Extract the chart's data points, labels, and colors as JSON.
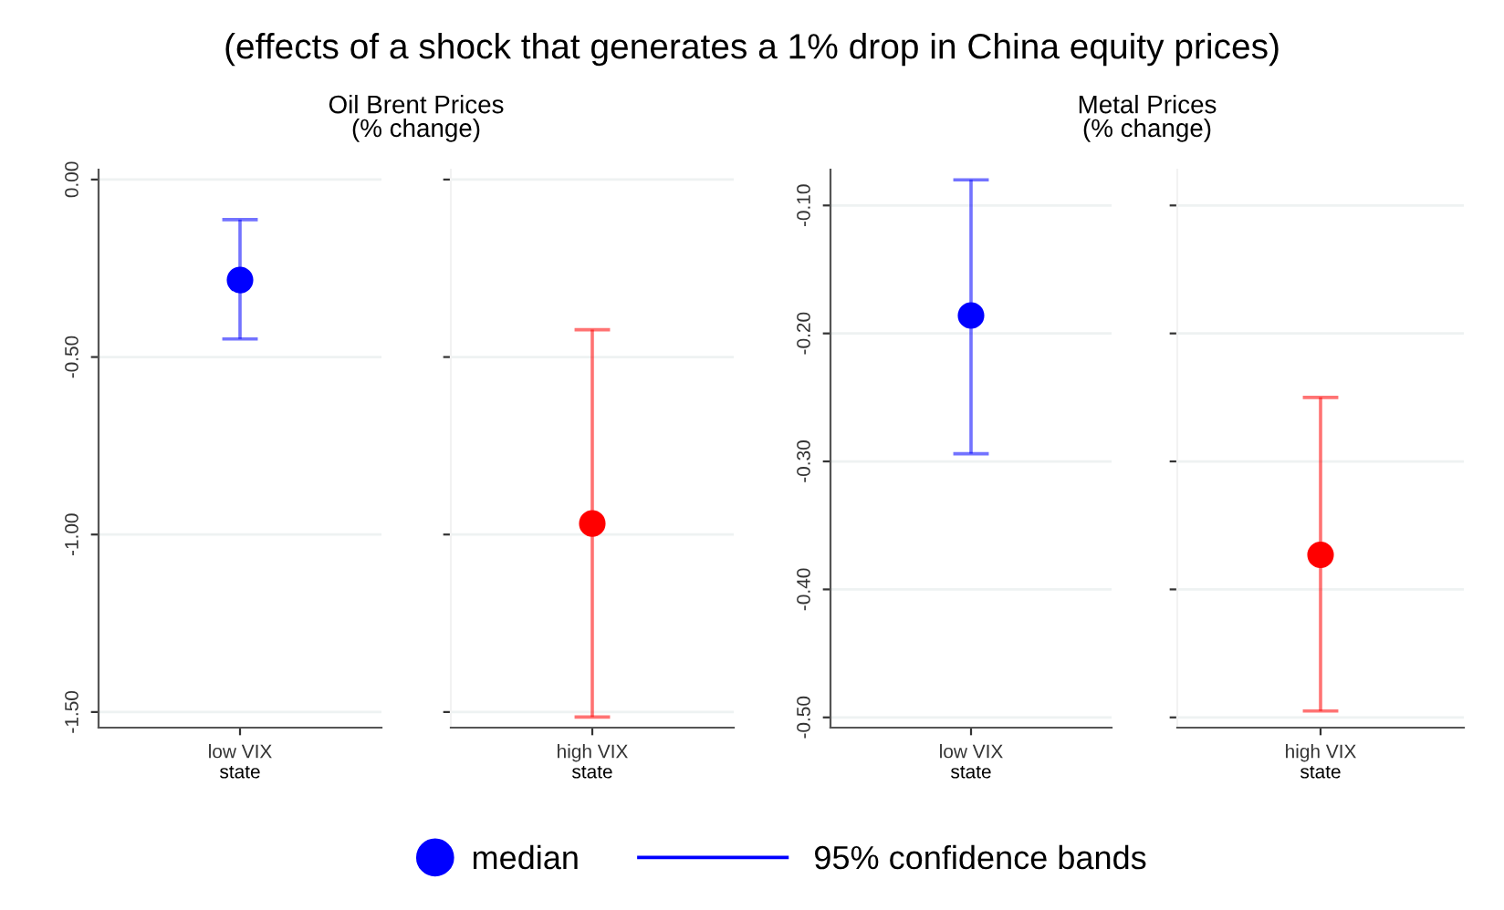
{
  "chart_data": [
    {
      "type": "scatter",
      "title": "(effects of a shock that generates a 1% drop in China equity prices)",
      "subtitle": "Oil Brent Prices\n(% change)",
      "categories": [
        "low VIX"
      ],
      "xlabel": "state",
      "series": [
        {
          "name": "median",
          "color": "#0000ff",
          "values": [
            -0.283
          ],
          "errors": [
            [
              -0.449,
              -0.113
            ]
          ]
        }
      ],
      "ylim": [
        -1.544,
        0.028
      ],
      "yticks": [
        {
          "value": 0,
          "label": "0.00"
        },
        {
          "value": -0.5,
          "label": "-0.50"
        },
        {
          "value": -1,
          "label": "-1.00"
        },
        {
          "value": -1.5,
          "label": "-1.50"
        }
      ],
      "grid": "y",
      "marker": "circle",
      "legend": "bottom",
      "annotations": [
        "95% confidence bands"
      ]
    },
    {
      "type": "scatter",
      "categories": [
        "high VIX"
      ],
      "xlabel": "state",
      "series": [
        {
          "color": "#ff0000",
          "values": [
            -0.969
          ],
          "errors": [
            [
              -1.514,
              -0.423
            ]
          ]
        }
      ],
      "ylim": [
        -1.544,
        0.028
      ],
      "yticks": [
        {
          "value": 0,
          "label": null
        },
        {
          "value": -0.5,
          "label": null
        },
        {
          "value": -1,
          "label": null
        },
        {
          "value": -1.5,
          "label": null
        }
      ],
      "grid": "y",
      "marker": "circle",
      "tick_labels": "x"
    },
    {
      "type": "scatter",
      "subtitle": "Metal Prices\n(% change)",
      "categories": [
        "low VIX"
      ],
      "xlabel": "state",
      "series": [
        {
          "color": "#0000ff",
          "values": [
            -0.186
          ],
          "errors": [
            [
              -0.294,
              -0.08
            ]
          ]
        }
      ],
      "ylim": [
        -0.508,
        -0.072
      ],
      "yticks": [
        {
          "value": -0.1,
          "label": "-0.10"
        },
        {
          "value": -0.2,
          "label": "-0.20"
        },
        {
          "value": -0.3,
          "label": "-0.30"
        },
        {
          "value": -0.4,
          "label": "-0.40"
        },
        {
          "value": -0.5,
          "label": "-0.50"
        }
      ],
      "grid": "y",
      "marker": "circle"
    },
    {
      "type": "scatter",
      "categories": [
        "high VIX"
      ],
      "xlabel": "state",
      "series": [
        {
          "color": "#ff0000",
          "values": [
            -0.373
          ],
          "errors": [
            [
              -0.495,
              -0.25
            ]
          ]
        }
      ],
      "ylim": [
        -0.508,
        -0.072
      ],
      "yticks": [
        {
          "value": -0.1,
          "label": null
        },
        {
          "value": -0.2,
          "label": null
        },
        {
          "value": -0.3,
          "label": null
        },
        {
          "value": -0.4,
          "label": null
        },
        {
          "value": -0.5,
          "label": null
        }
      ],
      "grid": "y",
      "marker": "circle",
      "tick_labels": "x"
    }
  ]
}
